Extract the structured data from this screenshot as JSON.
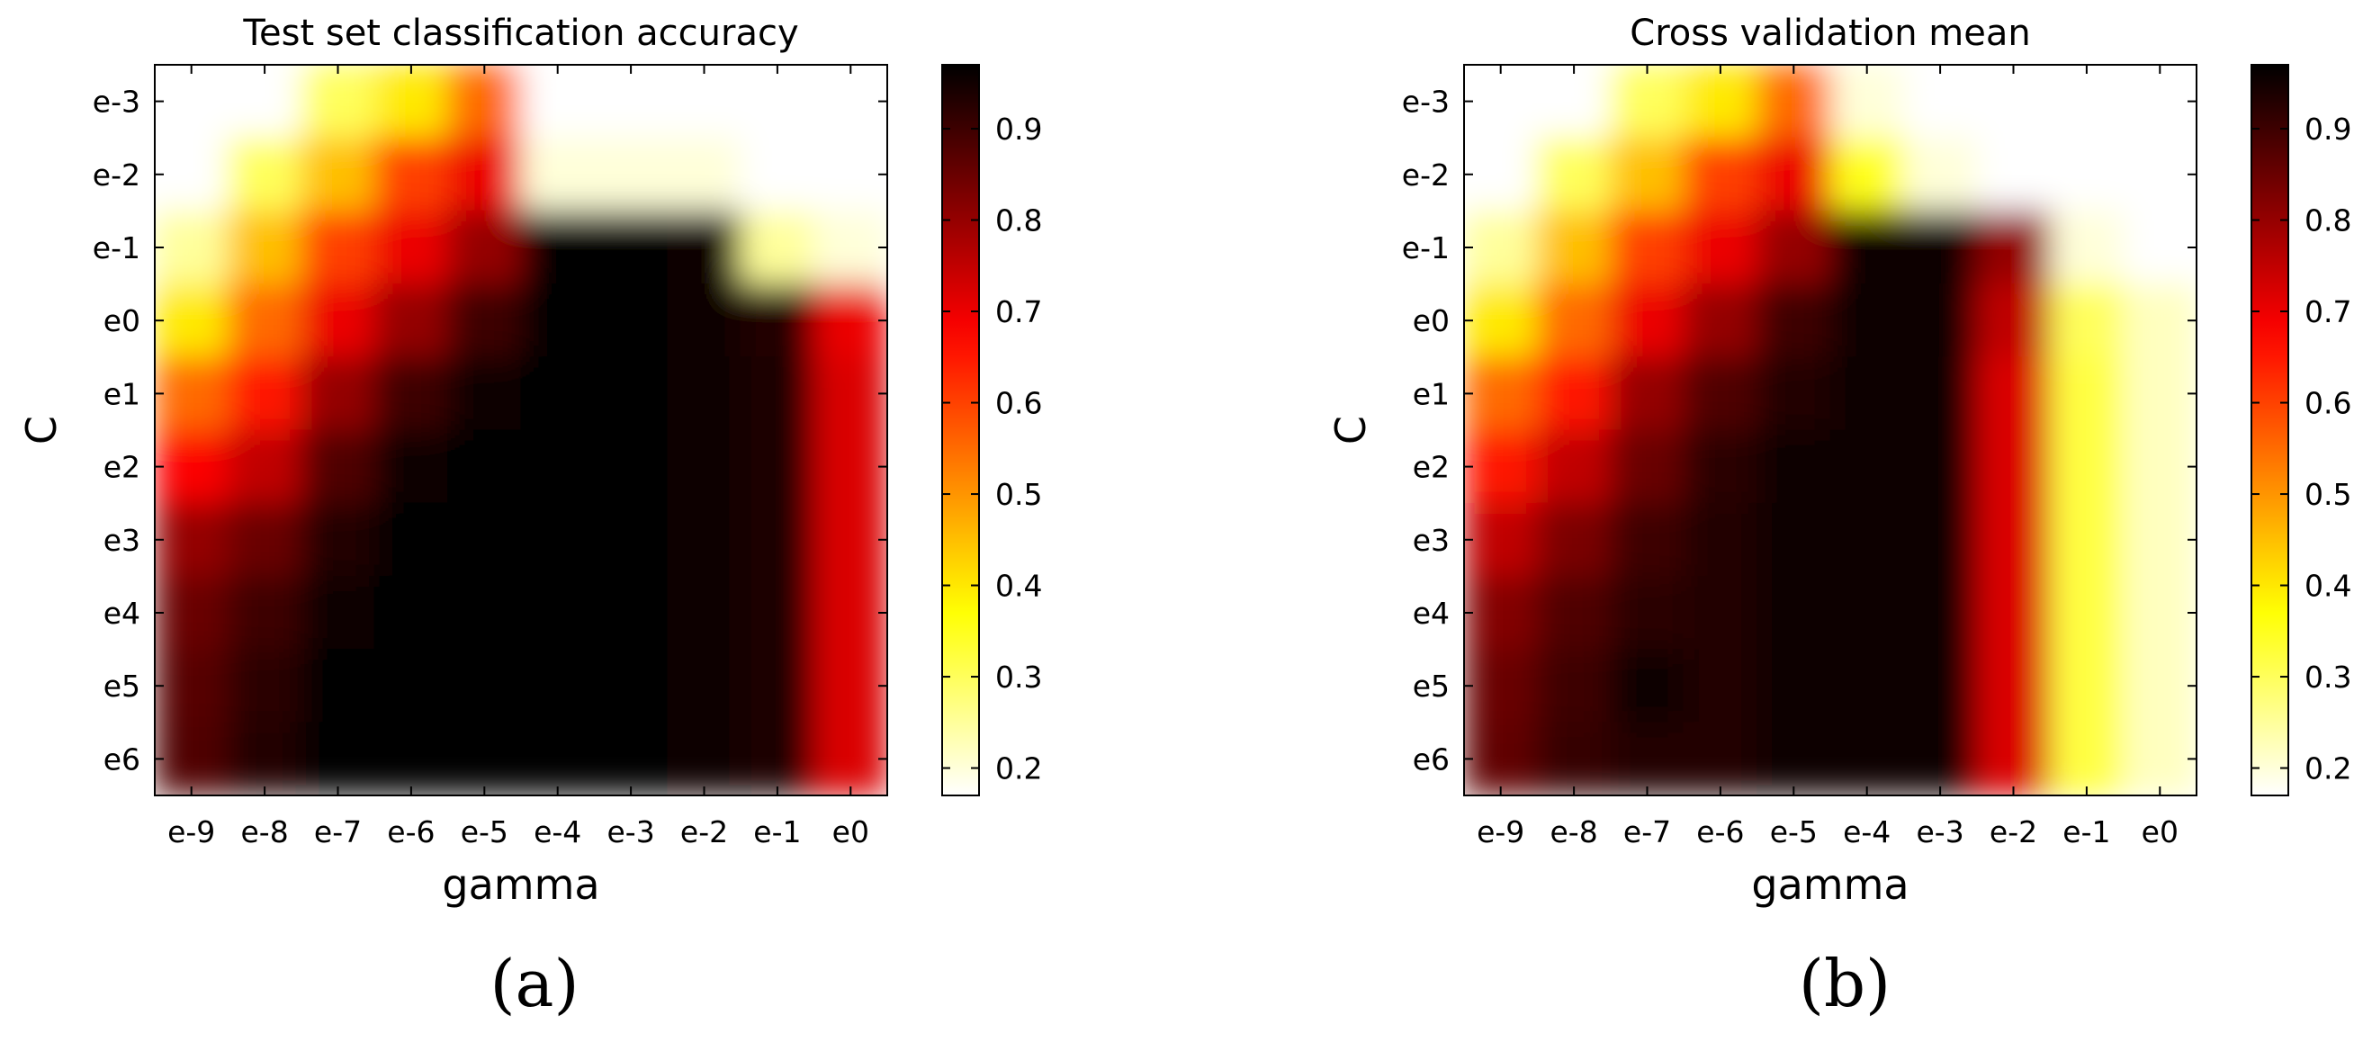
{
  "chart_data": [
    {
      "type": "heatmap",
      "panel_label": "(a)",
      "title": "Test set classification accuracy",
      "xlabel": "gamma",
      "ylabel": "C",
      "x": [
        "e-9",
        "e-8",
        "e-7",
        "e-6",
        "e-5",
        "e-4",
        "e-3",
        "e-2",
        "e-1",
        "e0"
      ],
      "y": [
        "e-3",
        "e-2",
        "e-1",
        "e0",
        "e1",
        "e2",
        "e3",
        "e4",
        "e5",
        "e6"
      ],
      "values": [
        [
          0.17,
          0.17,
          0.3,
          0.4,
          0.55,
          0.17,
          0.17,
          0.17,
          0.17,
          0.17
        ],
        [
          0.17,
          0.3,
          0.45,
          0.6,
          0.7,
          0.2,
          0.2,
          0.2,
          0.17,
          0.17
        ],
        [
          0.25,
          0.45,
          0.6,
          0.7,
          0.8,
          0.97,
          0.97,
          0.95,
          0.25,
          0.2
        ],
        [
          0.4,
          0.55,
          0.7,
          0.8,
          0.9,
          0.97,
          0.97,
          0.95,
          0.93,
          0.7
        ],
        [
          0.55,
          0.65,
          0.8,
          0.9,
          0.95,
          0.97,
          0.97,
          0.96,
          0.94,
          0.72
        ],
        [
          0.68,
          0.75,
          0.88,
          0.95,
          0.97,
          0.97,
          0.97,
          0.96,
          0.94,
          0.72
        ],
        [
          0.8,
          0.85,
          0.93,
          0.97,
          0.97,
          0.97,
          0.97,
          0.96,
          0.94,
          0.72
        ],
        [
          0.85,
          0.9,
          0.96,
          0.97,
          0.97,
          0.97,
          0.97,
          0.96,
          0.94,
          0.72
        ],
        [
          0.87,
          0.92,
          0.97,
          0.97,
          0.97,
          0.97,
          0.97,
          0.96,
          0.94,
          0.72
        ],
        [
          0.88,
          0.93,
          0.97,
          0.97,
          0.97,
          0.97,
          0.97,
          0.96,
          0.94,
          0.72
        ]
      ],
      "colorbar": {
        "colormap": "hot_r",
        "range": [
          0.17,
          0.97
        ],
        "ticks": [
          "0.2",
          "0.3",
          "0.4",
          "0.5",
          "0.6",
          "0.7",
          "0.8",
          "0.9"
        ]
      }
    },
    {
      "type": "heatmap",
      "panel_label": "(b)",
      "title": "Cross validation mean",
      "xlabel": "gamma",
      "ylabel": "C",
      "x": [
        "e-9",
        "e-8",
        "e-7",
        "e-6",
        "e-5",
        "e-4",
        "e-3",
        "e-2",
        "e-1",
        "e0"
      ],
      "y": [
        "e-3",
        "e-2",
        "e-1",
        "e0",
        "e1",
        "e2",
        "e3",
        "e4",
        "e5",
        "e6"
      ],
      "values": [
        [
          0.17,
          0.17,
          0.3,
          0.4,
          0.55,
          0.2,
          0.17,
          0.17,
          0.17,
          0.17
        ],
        [
          0.17,
          0.3,
          0.45,
          0.6,
          0.7,
          0.35,
          0.2,
          0.17,
          0.17,
          0.17
        ],
        [
          0.25,
          0.45,
          0.6,
          0.7,
          0.8,
          0.95,
          0.95,
          0.8,
          0.2,
          0.17
        ],
        [
          0.4,
          0.55,
          0.7,
          0.8,
          0.9,
          0.96,
          0.95,
          0.75,
          0.3,
          0.22
        ],
        [
          0.55,
          0.65,
          0.8,
          0.88,
          0.93,
          0.96,
          0.95,
          0.72,
          0.32,
          0.22
        ],
        [
          0.65,
          0.75,
          0.85,
          0.92,
          0.95,
          0.96,
          0.95,
          0.72,
          0.32,
          0.22
        ],
        [
          0.75,
          0.83,
          0.9,
          0.93,
          0.95,
          0.96,
          0.95,
          0.72,
          0.32,
          0.22
        ],
        [
          0.82,
          0.88,
          0.92,
          0.93,
          0.95,
          0.96,
          0.95,
          0.72,
          0.32,
          0.22
        ],
        [
          0.85,
          0.9,
          0.95,
          0.93,
          0.95,
          0.96,
          0.95,
          0.72,
          0.32,
          0.22
        ],
        [
          0.86,
          0.91,
          0.93,
          0.93,
          0.95,
          0.96,
          0.95,
          0.72,
          0.32,
          0.22
        ]
      ],
      "colorbar": {
        "colormap": "hot_r",
        "range": [
          0.17,
          0.97
        ],
        "ticks": [
          "0.2",
          "0.3",
          "0.4",
          "0.5",
          "0.6",
          "0.7",
          "0.8",
          "0.9"
        ]
      }
    }
  ]
}
